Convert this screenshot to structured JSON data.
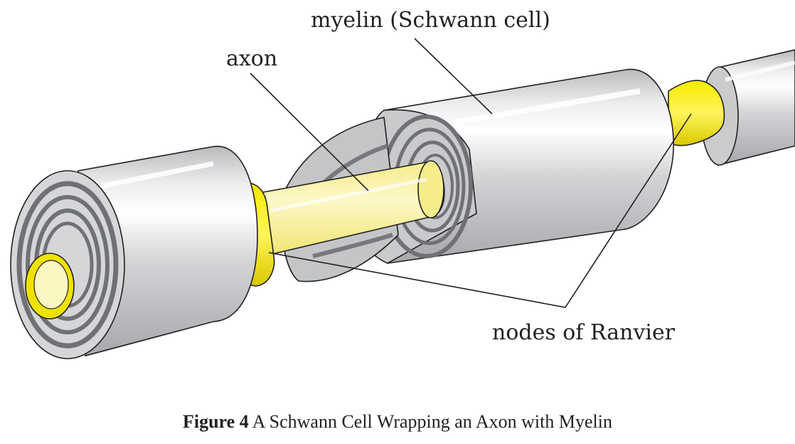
{
  "labels": {
    "myelin": "myelin (Schwann cell)",
    "axon": "axon",
    "nodes": "nodes of Ranvier"
  },
  "caption": {
    "number": "Figure 4",
    "text": "A Schwann Cell Wrapping an Axon with Myelin"
  },
  "colors": {
    "myelin": "#d3d5d7",
    "myelin_dark": "#8a8c8f",
    "axon": "#fbf4a6",
    "node": "#f2e200",
    "outline": "#231f20"
  }
}
